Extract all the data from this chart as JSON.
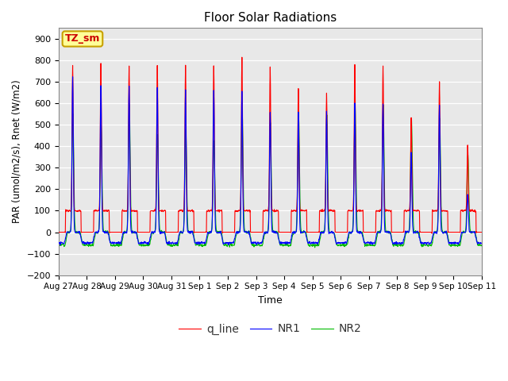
{
  "title": "Floor Solar Radiations",
  "xlabel": "Time",
  "ylabel": "PAR (umol/m2/s), Rnet (W/m2)",
  "ylim": [
    -200,
    950
  ],
  "yticks": [
    -200,
    -100,
    0,
    100,
    200,
    300,
    400,
    500,
    600,
    700,
    800,
    900
  ],
  "x_labels": [
    "Aug 27",
    "Aug 28",
    "Aug 29",
    "Aug 30",
    "Aug 31",
    "Sep 1",
    "Sep 2",
    "Sep 3",
    "Sep 4",
    "Sep 5",
    "Sep 6",
    "Sep 7",
    "Sep 8",
    "Sep 9",
    "Sep 10",
    "Sep 11"
  ],
  "bg_color": "#e8e8e8",
  "fig_color": "#ffffff",
  "annotation_text": "TZ_sm",
  "annotation_bg": "#ffff99",
  "annotation_border": "#c8a000",
  "q_line_color": "#ff0000",
  "NR1_color": "#0000ff",
  "NR2_color": "#00bb00",
  "line_width": 0.8,
  "n_days": 15,
  "dt": 0.25,
  "red_peaks": [
    780,
    780,
    775,
    780,
    775,
    780,
    815,
    770,
    670,
    645,
    780,
    775,
    535,
    700,
    405
  ],
  "blue_peaks": [
    715,
    685,
    680,
    670,
    665,
    660,
    660,
    560,
    560,
    560,
    600,
    590,
    370,
    590,
    180
  ],
  "green_peaks": [
    550,
    500,
    590,
    460,
    480,
    430,
    560,
    510,
    550,
    545,
    600,
    590,
    530,
    530,
    360
  ],
  "red_base": 100,
  "night_val_blue": -50,
  "night_val_green": -60
}
